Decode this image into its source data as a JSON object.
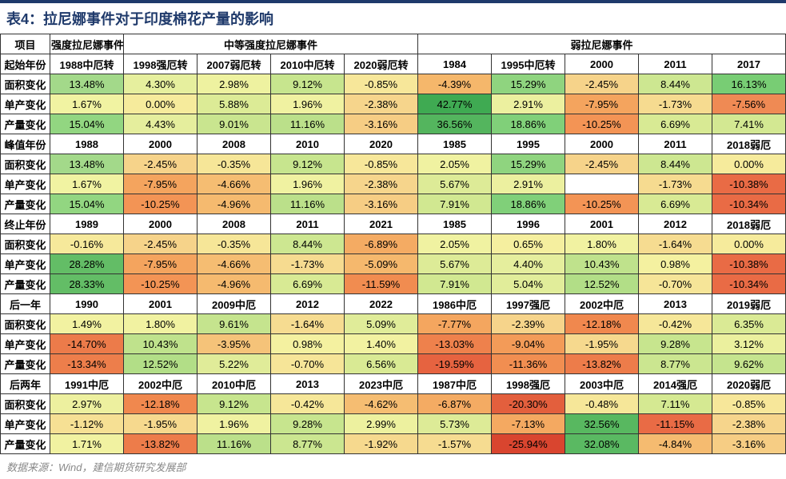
{
  "title": "表4：拉尼娜事件对于印度棉花产量的影响",
  "source": "数据来源：Wind，建信期货研究发展部",
  "header": {
    "proj": "项目",
    "strong": "强度拉尼娜事件",
    "medium": "中等强度拉尼娜事件",
    "weak": "弱拉尼娜事件"
  },
  "colyears": [
    "1988中厄转",
    "1998强厄转",
    "2007弱厄转",
    "2010中厄转",
    "2020弱厄转",
    "1984",
    "1995中厄转",
    "2000",
    "2011",
    "2017"
  ],
  "sections": [
    {
      "label": "起始年份",
      "rows": [
        {
          "label": "面积变化",
          "cells": [
            {
              "v": "13.48%",
              "c": "#a3d98a"
            },
            {
              "v": "4.30%",
              "c": "#e6ef9e"
            },
            {
              "v": "2.98%",
              "c": "#eef2a0"
            },
            {
              "v": "9.12%",
              "c": "#c7e58e"
            },
            {
              "v": "-0.85%",
              "c": "#f7e79a"
            },
            {
              "v": "-4.39%",
              "c": "#f5b76b"
            },
            {
              "v": "15.29%",
              "c": "#8fd47f"
            },
            {
              "v": "-2.45%",
              "c": "#f6d38a"
            },
            {
              "v": "8.44%",
              "c": "#cde791"
            },
            {
              "v": "16.13%",
              "c": "#78cd74"
            }
          ]
        },
        {
          "label": "单产变化",
          "cells": [
            {
              "v": "1.67%",
              "c": "#f1f3a2"
            },
            {
              "v": "0.00%",
              "c": "#f6eb9c"
            },
            {
              "v": "5.88%",
              "c": "#dceb96"
            },
            {
              "v": "1.96%",
              "c": "#f0f2a1"
            },
            {
              "v": "-2.38%",
              "c": "#f6d58c"
            },
            {
              "v": "42.77%",
              "c": "#3faa52"
            },
            {
              "v": "2.91%",
              "c": "#ecf09f"
            },
            {
              "v": "-7.95%",
              "c": "#f4a45e"
            },
            {
              "v": "-1.73%",
              "c": "#f6db90"
            },
            {
              "v": "-7.56%",
              "c": "#ef8a54"
            }
          ]
        },
        {
          "label": "产量变化",
          "cells": [
            {
              "v": "15.04%",
              "c": "#92d681"
            },
            {
              "v": "4.43%",
              "c": "#e5ee9d"
            },
            {
              "v": "9.01%",
              "c": "#c9e58f"
            },
            {
              "v": "11.16%",
              "c": "#bbe08a"
            },
            {
              "v": "-3.16%",
              "c": "#f6cd84"
            },
            {
              "v": "36.56%",
              "c": "#54b55e"
            },
            {
              "v": "18.86%",
              "c": "#80d079"
            },
            {
              "v": "-10.25%",
              "c": "#f39455"
            },
            {
              "v": "6.69%",
              "c": "#d8ea94"
            },
            {
              "v": "7.41%",
              "c": "#d3e892"
            }
          ]
        }
      ]
    },
    {
      "label": "峰值年份",
      "years": [
        "1988",
        "2000",
        "2008",
        "2010",
        "2020",
        "1985",
        "1995",
        "2000",
        "2011",
        "2018弱厄"
      ],
      "rows": [
        {
          "label": "面积变化",
          "cells": [
            {
              "v": "13.48%",
              "c": "#a3d98a"
            },
            {
              "v": "-2.45%",
              "c": "#f6d38a"
            },
            {
              "v": "-0.35%",
              "c": "#f6e698"
            },
            {
              "v": "9.12%",
              "c": "#c7e58e"
            },
            {
              "v": "-0.85%",
              "c": "#f7e79a"
            },
            {
              "v": "2.05%",
              "c": "#f0f2a1"
            },
            {
              "v": "15.29%",
              "c": "#8fd47f"
            },
            {
              "v": "-2.45%",
              "c": "#f6d38a"
            },
            {
              "v": "8.44%",
              "c": "#cde791"
            },
            {
              "v": "0.00%",
              "c": "#f6eb9c"
            }
          ]
        },
        {
          "label": "单产变化",
          "cells": [
            {
              "v": "1.67%",
              "c": "#f1f3a2"
            },
            {
              "v": "-7.95%",
              "c": "#f4a45e"
            },
            {
              "v": "-4.66%",
              "c": "#f5bd72"
            },
            {
              "v": "1.96%",
              "c": "#f0f2a1"
            },
            {
              "v": "-2.38%",
              "c": "#f6d58c"
            },
            {
              "v": "5.67%",
              "c": "#ddeb97"
            },
            {
              "v": "2.91%",
              "c": "#ecf09f"
            },
            {
              "v": ",",
              "c": ""
            },
            {
              "v": "-1.73%",
              "c": "#f6db90"
            },
            {
              "v": "-10.38%",
              "c": "#e96b45"
            }
          ]
        },
        {
          "label": "产量变化",
          "cells": [
            {
              "v": "15.04%",
              "c": "#92d681"
            },
            {
              "v": "-10.25%",
              "c": "#f39455"
            },
            {
              "v": "-4.96%",
              "c": "#f5ba6f"
            },
            {
              "v": "11.16%",
              "c": "#bbe08a"
            },
            {
              "v": "-3.16%",
              "c": "#f6cd84"
            },
            {
              "v": "7.91%",
              "c": "#d1e891"
            },
            {
              "v": "18.86%",
              "c": "#80d079"
            },
            {
              "v": "-10.25%",
              "c": "#f39455"
            },
            {
              "v": "6.69%",
              "c": "#d8ea94"
            },
            {
              "v": "-10.34%",
              "c": "#e96b45"
            }
          ]
        }
      ],
      "fix_row1_col7": {
        "v": "",
        "c": "#ffffff"
      }
    },
    {
      "label": "终止年份",
      "years": [
        "1989",
        "2000",
        "2008",
        "2011",
        "2021",
        "1985",
        "1996",
        "2001",
        "2012",
        "2018弱厄"
      ],
      "rows": [
        {
          "label": "面积变化",
          "cells": [
            {
              "v": "-0.16%",
              "c": "#f6e99b"
            },
            {
              "v": "-2.45%",
              "c": "#f6d38a"
            },
            {
              "v": "-0.35%",
              "c": "#f6e698"
            },
            {
              "v": "8.44%",
              "c": "#cde791"
            },
            {
              "v": "-6.89%",
              "c": "#f4ab63"
            },
            {
              "v": "2.05%",
              "c": "#f0f2a1"
            },
            {
              "v": "0.65%",
              "c": "#f5ef9f"
            },
            {
              "v": "1.80%",
              "c": "#f1f2a1"
            },
            {
              "v": "-1.64%",
              "c": "#f6dc91"
            },
            {
              "v": "0.00%",
              "c": "#f6eb9c"
            }
          ]
        },
        {
          "label": "单产变化",
          "cells": [
            {
              "v": "28.28%",
              "c": "#63bd66"
            },
            {
              "v": "-7.95%",
              "c": "#f4a45e"
            },
            {
              "v": "-4.66%",
              "c": "#f5bd72"
            },
            {
              "v": "-1.73%",
              "c": "#f6db90"
            },
            {
              "v": "-5.09%",
              "c": "#f5b86d"
            },
            {
              "v": "5.67%",
              "c": "#ddeb97"
            },
            {
              "v": "4.40%",
              "c": "#e5ee9d"
            },
            {
              "v": "10.43%",
              "c": "#bfe28c"
            },
            {
              "v": "0.98%",
              "c": "#f4f1a0"
            },
            {
              "v": "-10.38%",
              "c": "#e96b45"
            }
          ]
        },
        {
          "label": "产量变化",
          "cells": [
            {
              "v": "28.33%",
              "c": "#63bd66"
            },
            {
              "v": "-10.25%",
              "c": "#f39455"
            },
            {
              "v": "-4.96%",
              "c": "#f5ba6f"
            },
            {
              "v": "6.69%",
              "c": "#d8ea94"
            },
            {
              "v": "-11.59%",
              "c": "#f18c50"
            },
            {
              "v": "7.91%",
              "c": "#d1e891"
            },
            {
              "v": "5.04%",
              "c": "#e1ed9a"
            },
            {
              "v": "12.52%",
              "c": "#b2de87"
            },
            {
              "v": "-0.70%",
              "c": "#f6e598"
            },
            {
              "v": "-10.34%",
              "c": "#e96b45"
            }
          ]
        }
      ]
    },
    {
      "label": "后一年",
      "years": [
        "1990",
        "2001",
        "2009中厄",
        "2012",
        "2022",
        "1986中厄",
        "1997强厄",
        "2002中厄",
        "2013",
        "2019弱厄"
      ],
      "rows": [
        {
          "label": "面积变化",
          "cells": [
            {
              "v": "1.49%",
              "c": "#f2f2a1"
            },
            {
              "v": "1.80%",
              "c": "#f1f2a1"
            },
            {
              "v": "9.61%",
              "c": "#c5e48e"
            },
            {
              "v": "-1.64%",
              "c": "#f6dc91"
            },
            {
              "v": "5.09%",
              "c": "#e0ec99"
            },
            {
              "v": "-7.77%",
              "c": "#f4a65f"
            },
            {
              "v": "-2.39%",
              "c": "#f6d48b"
            },
            {
              "v": "-12.18%",
              "c": "#f0884e"
            },
            {
              "v": "-0.42%",
              "c": "#f6e799"
            },
            {
              "v": "6.35%",
              "c": "#daea95"
            }
          ]
        },
        {
          "label": "单产变化",
          "cells": [
            {
              "v": "-14.70%",
              "c": "#ec7b4a"
            },
            {
              "v": "10.43%",
              "c": "#bfe28c"
            },
            {
              "v": "-3.95%",
              "c": "#f5c379"
            },
            {
              "v": "0.98%",
              "c": "#f4f1a0"
            },
            {
              "v": "1.40%",
              "c": "#f2f2a1"
            },
            {
              "v": "-13.03%",
              "c": "#ee814c"
            },
            {
              "v": "-9.04%",
              "c": "#f39b58"
            },
            {
              "v": "-1.95%",
              "c": "#f6d98e"
            },
            {
              "v": "9.28%",
              "c": "#c7e58e"
            },
            {
              "v": "3.12%",
              "c": "#ebf09e"
            }
          ]
        },
        {
          "label": "产量变化",
          "cells": [
            {
              "v": "-13.34%",
              "c": "#ed7e4b"
            },
            {
              "v": "12.52%",
              "c": "#b2de87"
            },
            {
              "v": "5.22%",
              "c": "#e0ec99"
            },
            {
              "v": "-0.70%",
              "c": "#f6e598"
            },
            {
              "v": "6.56%",
              "c": "#d9ea94"
            },
            {
              "v": "-19.59%",
              "c": "#e66340"
            },
            {
              "v": "-11.36%",
              "c": "#f18e51"
            },
            {
              "v": "-13.82%",
              "c": "#ed7c4a"
            },
            {
              "v": "8.77%",
              "c": "#cbe690"
            },
            {
              "v": "9.62%",
              "c": "#c5e48e"
            }
          ]
        }
      ]
    },
    {
      "label": "后两年",
      "years": [
        "1991中厄",
        "2002中厄",
        "2010中厄",
        "2013",
        "2023中厄",
        "1987中厄",
        "1998强厄",
        "2003中厄",
        "2014强厄",
        "2020弱厄"
      ],
      "rows": [
        {
          "label": "面积变化",
          "cells": [
            {
              "v": "2.97%",
              "c": "#edf09f"
            },
            {
              "v": "-12.18%",
              "c": "#f0884e"
            },
            {
              "v": "9.12%",
              "c": "#c7e58e"
            },
            {
              "v": "-0.42%",
              "c": "#f6e799"
            },
            {
              "v": "-4.62%",
              "c": "#f5bd72"
            },
            {
              "v": "-6.87%",
              "c": "#f4ab63"
            },
            {
              "v": "-20.30%",
              "c": "#e35f3d"
            },
            {
              "v": "-0.48%",
              "c": "#f6e799"
            },
            {
              "v": "7.11%",
              "c": "#d5e992"
            },
            {
              "v": "-0.85%",
              "c": "#f7e79a"
            }
          ]
        },
        {
          "label": "单产变化",
          "cells": [
            {
              "v": "-1.12%",
              "c": "#f6e094"
            },
            {
              "v": "-1.95%",
              "c": "#f6d98e"
            },
            {
              "v": "1.96%",
              "c": "#f0f2a1"
            },
            {
              "v": "9.28%",
              "c": "#c7e58e"
            },
            {
              "v": "2.99%",
              "c": "#edf19f"
            },
            {
              "v": "5.73%",
              "c": "#ddeb97"
            },
            {
              "v": "-7.13%",
              "c": "#f4a961"
            },
            {
              "v": "32.56%",
              "c": "#58b860"
            },
            {
              "v": "-11.15%",
              "c": "#e96b45"
            },
            {
              "v": "-2.38%",
              "c": "#f6d58c"
            }
          ]
        },
        {
          "label": "产量变化",
          "cells": [
            {
              "v": "1.71%",
              "c": "#f1f2a1"
            },
            {
              "v": "-13.82%",
              "c": "#ed7c4a"
            },
            {
              "v": "11.16%",
              "c": "#bbe08a"
            },
            {
              "v": "8.77%",
              "c": "#cbe690"
            },
            {
              "v": "-1.92%",
              "c": "#f6d98e"
            },
            {
              "v": "-1.57%",
              "c": "#f6dc91"
            },
            {
              "v": "-25.94%",
              "c": "#d9452f"
            },
            {
              "v": "32.08%",
              "c": "#5ab962"
            },
            {
              "v": "-4.84%",
              "c": "#f5bb70"
            },
            {
              "v": "-3.16%",
              "c": "#f6cd84"
            }
          ]
        }
      ]
    }
  ],
  "peak_fix": {
    "v": "",
    "hide": false
  }
}
